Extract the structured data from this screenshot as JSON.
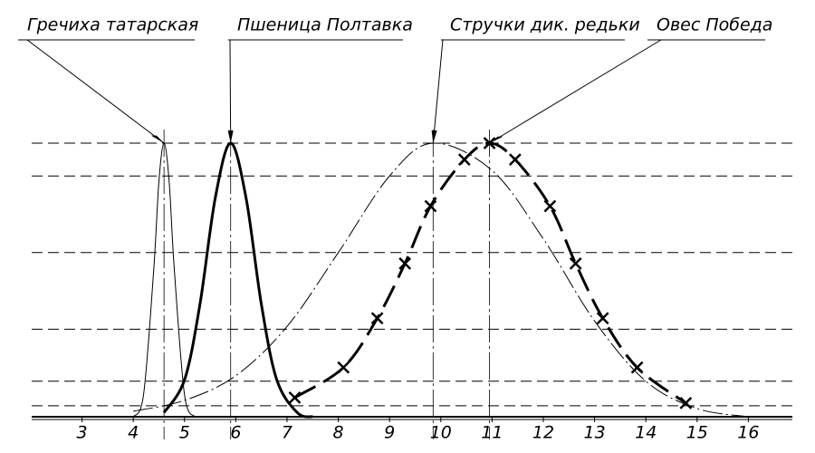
{
  "chart_data": {
    "type": "line",
    "xlim": [
      1.4,
      17.3
    ],
    "ylim": [
      0,
      1
    ],
    "xticks": [
      3,
      4,
      5,
      6,
      7,
      8,
      9,
      10,
      11,
      12,
      13,
      14,
      15,
      16
    ],
    "grid_levels": [
      1,
      0.88,
      0.6,
      0.32,
      0.13,
      0.04
    ],
    "series": [
      {
        "name": "Гречиха татарская",
        "color": "#000000",
        "width": 1,
        "style": "solid",
        "markers": false,
        "x": [
          4.0,
          4.2,
          4.4,
          4.5,
          4.6,
          4.7,
          4.8,
          5.0,
          5.2
        ],
        "values": [
          0,
          0.08,
          0.54,
          0.86,
          1,
          0.86,
          0.54,
          0.08,
          0
        ]
      },
      {
        "name": "Пшеница Полтавка",
        "color": "#000000",
        "width": 3,
        "style": "solid",
        "markers": false,
        "x": [
          4.6,
          5.0,
          5.3,
          5.6,
          5.9,
          6.2,
          6.5,
          6.8,
          7.2,
          7.5
        ],
        "values": [
          0.015,
          0.135,
          0.41,
          0.8,
          1,
          0.8,
          0.41,
          0.135,
          0.015,
          0
        ]
      },
      {
        "name": "Стручки дик. редьки",
        "color": "#000000",
        "width": 1,
        "style": "dash-dot",
        "markers": false,
        "x": [
          4,
          5,
          6,
          7,
          8,
          9,
          9.85,
          11,
          12,
          13,
          14,
          15,
          16
        ],
        "values": [
          0.02,
          0.06,
          0.15,
          0.33,
          0.6,
          0.88,
          1,
          0.9,
          0.65,
          0.35,
          0.13,
          0.03,
          0
        ]
      },
      {
        "name": "Овес Победа",
        "color": "#000000",
        "width": 3,
        "style": "dashed",
        "markers": true,
        "x": [
          7.15,
          8.1,
          8.76,
          9.3,
          9.8,
          10.46,
          10.95,
          11.45,
          12.13,
          12.63,
          13.16,
          13.83,
          14.78
        ],
        "values": [
          0.07,
          0.18,
          0.36,
          0.56,
          0.77,
          0.94,
          1,
          0.94,
          0.77,
          0.56,
          0.36,
          0.18,
          0.05
        ]
      }
    ]
  }
}
